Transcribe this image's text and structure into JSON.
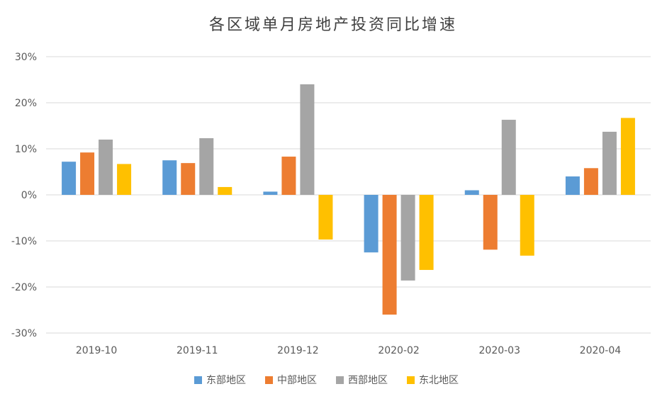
{
  "chart_data": {
    "type": "bar",
    "title": "各区域单月房地产投资同比增速",
    "xlabel": "",
    "ylabel": "",
    "categories": [
      "2019-10",
      "2019-11",
      "2019-12",
      "2020-02",
      "2020-03",
      "2020-04"
    ],
    "series": [
      {
        "name": "东部地区",
        "color": "#5B9BD5",
        "values": [
          7.2,
          7.5,
          0.7,
          -12.5,
          1.0,
          4.0
        ]
      },
      {
        "name": "中部地区",
        "color": "#ED7D31",
        "values": [
          9.2,
          6.9,
          8.3,
          -26.0,
          -11.9,
          5.8
        ]
      },
      {
        "name": "西部地区",
        "color": "#A5A5A5",
        "values": [
          12.0,
          12.3,
          24.0,
          -18.6,
          16.3,
          13.7
        ]
      },
      {
        "name": "东北地区",
        "color": "#FFC000",
        "values": [
          6.7,
          1.7,
          -9.7,
          -16.3,
          -13.2,
          16.7
        ]
      }
    ],
    "ylim": [
      -30,
      30
    ],
    "yticks": [
      30,
      20,
      10,
      0,
      -10,
      -20,
      -30
    ],
    "ytick_labels": [
      "30%",
      "20%",
      "10%",
      "0%",
      "-10%",
      "-20%",
      "-30%"
    ],
    "grid": true,
    "legend_position": "bottom"
  }
}
